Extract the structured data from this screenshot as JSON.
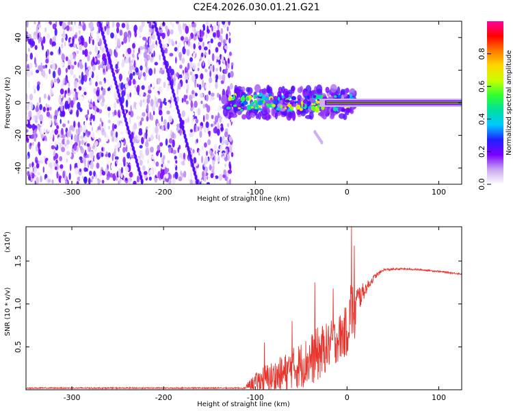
{
  "title": "C2E4.2026.030.01.21.G21",
  "chart_data": [
    {
      "type": "heatmap",
      "xlabel": "Height of straight line (km)",
      "ylabel": "Frequency (Hz)",
      "xlim": [
        -350,
        125
      ],
      "ylim": [
        -50,
        50
      ],
      "xticks": [
        -300,
        -200,
        -100,
        0,
        100
      ],
      "yticks": [
        -40,
        -20,
        0,
        20,
        40
      ],
      "colorbar": {
        "label": "Normalized spectral amplitude",
        "range": [
          0,
          1
        ],
        "ticks": [
          "0.0",
          "0.2",
          "0.4",
          "0.6",
          "0.8"
        ],
        "colors": [
          "#ffffff",
          "#c9a6f0",
          "#7a00ff",
          "#2020ff",
          "#00c8ff",
          "#00e0a0",
          "#30ff30",
          "#c8ff00",
          "#ffd700",
          "#ff7a00",
          "#ff0000",
          "#ff00a0"
        ]
      },
      "features": [
        {
          "name": "noise region",
          "x_range": [
            -350,
            -125
          ],
          "freq_range": [
            -50,
            50
          ],
          "amplitude_range": [
            0.0,
            0.25
          ]
        },
        {
          "name": "signal cluster",
          "x_range": [
            -135,
            10
          ],
          "freq_center": 0,
          "freq_spread": 8,
          "amplitude_range": [
            0.1,
            0.7
          ]
        },
        {
          "name": "carrier line",
          "x_range": [
            -30,
            125
          ],
          "freq_center": 0,
          "amplitude": 1.0
        }
      ]
    },
    {
      "type": "line",
      "xlabel": "Height of straight line (km)",
      "ylabel": "SNR (10 * v/v)",
      "yscale_label": "(x10^4)",
      "xlim": [
        -350,
        125
      ],
      "ylim": [
        0,
        1.9
      ],
      "xticks": [
        -300,
        -200,
        -100,
        0,
        100
      ],
      "yticks": [
        0.5,
        1.0,
        1.5
      ],
      "series": [
        {
          "name": "SNR",
          "color": "#e8342c",
          "x": [
            -350,
            -300,
            -250,
            -200,
            -150,
            -120,
            -110,
            -100,
            -90,
            -80,
            -70,
            -60,
            -50,
            -40,
            -30,
            -20,
            -10,
            0,
            5,
            8,
            10,
            20,
            30,
            40,
            60,
            80,
            100,
            125
          ],
          "y": [
            0.02,
            0.02,
            0.02,
            0.02,
            0.02,
            0.02,
            0.04,
            0.1,
            0.14,
            0.16,
            0.2,
            0.26,
            0.32,
            0.38,
            0.46,
            0.54,
            0.62,
            0.72,
            1.02,
            0.85,
            1.05,
            1.18,
            1.32,
            1.4,
            1.41,
            1.4,
            1.38,
            1.35
          ],
          "noise_amplitude": [
            0.01,
            0.01,
            0.01,
            0.01,
            0.01,
            0.01,
            0.05,
            0.2,
            0.35,
            0.4,
            0.45,
            0.5,
            0.55,
            0.6,
            0.65,
            0.55,
            0.55,
            0.6,
            0.8,
            0.7,
            0.4,
            0.15,
            0.06,
            0.03,
            0.02,
            0.02,
            0.02,
            0.02
          ],
          "peaks": [
            [
              -90,
              0.55
            ],
            [
              -60,
              0.8
            ],
            [
              -35,
              1.25
            ],
            [
              -15,
              1.18
            ],
            [
              5,
              1.9
            ],
            [
              8,
              1.68
            ]
          ]
        }
      ]
    }
  ]
}
